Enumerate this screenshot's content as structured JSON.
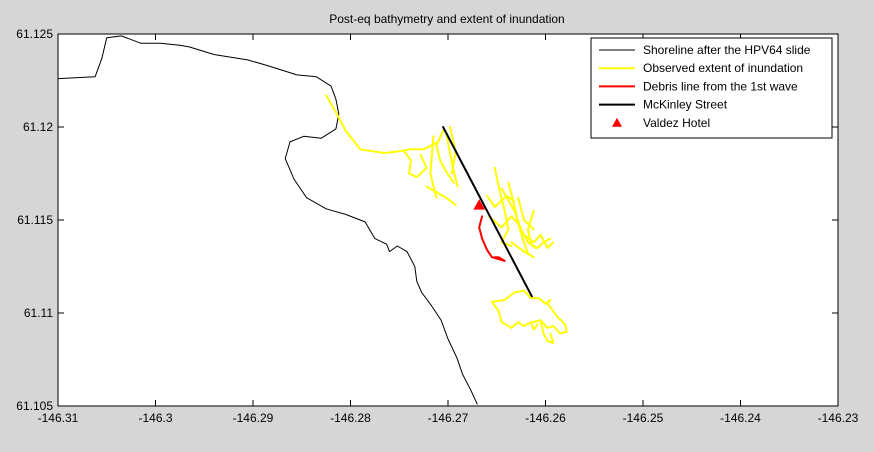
{
  "chart_data": {
    "type": "line",
    "title": "Post-eq bathymetry and extent of inundation",
    "xlabel": "",
    "ylabel": "",
    "xlim": [
      -146.31,
      -146.23
    ],
    "ylim": [
      61.105,
      61.125
    ],
    "xticks": [
      -146.31,
      -146.3,
      -146.29,
      -146.28,
      -146.27,
      -146.26,
      -146.25,
      -146.24,
      -146.23
    ],
    "yticks": [
      61.105,
      61.11,
      61.115,
      61.12,
      61.125
    ],
    "xtick_labels": [
      "-146.31",
      "-146.3",
      "-146.29",
      "-146.28",
      "-146.27",
      "-146.26",
      "-146.25",
      "-146.24",
      "-146.23"
    ],
    "ytick_labels": [
      "61.105",
      "61.11",
      "61.115",
      "61.12",
      "61.125"
    ],
    "grid": false,
    "legend_position": "top-right",
    "series": [
      {
        "name": "Shoreline after the HPV64 slide",
        "color": "#000000",
        "style": "line",
        "width": 1,
        "segments": [
          [
            [
              -146.31,
              61.1226
            ],
            [
              -146.3062,
              61.1227
            ],
            [
              -146.3055,
              61.1237
            ],
            [
              -146.305,
              61.1248
            ],
            [
              -146.3035,
              61.1249
            ],
            [
              -146.3015,
              61.1245
            ],
            [
              -146.2995,
              61.1245
            ],
            [
              -146.2975,
              61.1244
            ],
            [
              -146.2965,
              61.1243
            ],
            [
              -146.294,
              61.1239
            ],
            [
              -146.2905,
              61.1236
            ],
            [
              -146.2885,
              61.1233
            ],
            [
              -146.2855,
              61.1228
            ],
            [
              -146.2835,
              61.1227
            ],
            [
              -146.282,
              61.1222
            ],
            [
              -146.2815,
              61.1215
            ],
            [
              -146.2812,
              61.1207
            ],
            [
              -146.2815,
              61.1199
            ],
            [
              -146.283,
              61.1194
            ],
            [
              -146.2848,
              61.1195
            ],
            [
              -146.2862,
              61.1192
            ],
            [
              -146.2867,
              61.1183
            ],
            [
              -146.2858,
              61.1172
            ],
            [
              -146.2845,
              61.1162
            ],
            [
              -146.2825,
              61.1156
            ],
            [
              -146.2805,
              61.1153
            ],
            [
              -146.2785,
              61.1149
            ],
            [
              -146.2775,
              61.114
            ],
            [
              -146.2763,
              61.1137
            ],
            [
              -146.276,
              61.1133
            ],
            [
              -146.2752,
              61.1136
            ],
            [
              -146.2742,
              61.1133
            ],
            [
              -146.2734,
              61.1125
            ],
            [
              -146.2732,
              61.1117
            ],
            [
              -146.2727,
              61.1111
            ],
            [
              -146.2717,
              61.1104
            ],
            [
              -146.2707,
              61.1096
            ],
            [
              -146.27,
              61.1086
            ],
            [
              -146.2691,
              61.1076
            ],
            [
              -146.2685,
              61.1067
            ],
            [
              -146.2677,
              61.1059
            ],
            [
              -146.267,
              61.1051
            ]
          ]
        ]
      },
      {
        "name": "Observed extent of inundation",
        "color": "#ffff00",
        "style": "line",
        "width": 2,
        "segments": [
          [
            [
              -146.2825,
              61.1217
            ],
            [
              -146.2815,
              61.1208
            ],
            [
              -146.2805,
              61.1198
            ],
            [
              -146.279,
              61.1188
            ],
            [
              -146.2778,
              61.1187
            ],
            [
              -146.2765,
              61.1186
            ],
            [
              -146.275,
              61.1187
            ],
            [
              -146.2738,
              61.1188
            ],
            [
              -146.2725,
              61.1188
            ],
            [
              -146.271,
              61.1192
            ],
            [
              -146.2705,
              61.1198
            ],
            [
              -146.2712,
              61.119
            ],
            [
              -146.2708,
              61.1182
            ],
            [
              -146.2702,
              61.1176
            ],
            [
              -146.2694,
              61.117
            ]
          ],
          [
            [
              -146.2745,
              61.1187
            ],
            [
              -146.2738,
              61.1182
            ],
            [
              -146.274,
              61.1175
            ],
            [
              -146.2732,
              61.1173
            ],
            [
              -146.2722,
              61.1178
            ],
            [
              -146.2728,
              61.1185
            ]
          ],
          [
            [
              -146.2715,
              61.1195
            ],
            [
              -146.2718,
              61.1175
            ],
            [
              -146.2712,
              61.1162
            ]
          ],
          [
            [
              -146.2702,
              61.1197
            ],
            [
              -146.2695,
              61.1178
            ],
            [
              -146.269,
              61.1168
            ]
          ],
          [
            [
              -146.2722,
              61.1168
            ],
            [
              -146.2702,
              61.1162
            ],
            [
              -146.2692,
              61.1158
            ]
          ],
          [
            [
              -146.2698,
              61.12
            ],
            [
              -146.2692,
              61.1187
            ],
            [
              -146.2696,
              61.1175
            ]
          ],
          [
            [
              -146.2652,
              61.1178
            ],
            [
              -146.2648,
              61.1168
            ],
            [
              -146.2642,
              61.1155
            ],
            [
              -146.2638,
              61.1145
            ],
            [
              -146.2645,
              61.1138
            ],
            [
              -146.2635,
              61.1136
            ]
          ],
          [
            [
              -146.266,
              61.1163
            ],
            [
              -146.2652,
              61.1157
            ],
            [
              -146.264,
              61.1163
            ],
            [
              -146.2632,
              61.116
            ]
          ],
          [
            [
              -146.2658,
              61.1152
            ],
            [
              -146.2645,
              61.1146
            ],
            [
              -146.2635,
              61.1152
            ],
            [
              -146.2628,
              61.1148
            ]
          ],
          [
            [
              -146.2645,
              61.1167
            ],
            [
              -146.2632,
              61.1155
            ],
            [
              -146.2625,
              61.1145
            ],
            [
              -146.2618,
              61.1138
            ],
            [
              -146.261,
              61.1135
            ]
          ],
          [
            [
              -146.2638,
              61.117
            ],
            [
              -146.2633,
              61.116
            ],
            [
              -146.2628,
              61.1148
            ],
            [
              -146.2622,
              61.1138
            ],
            [
              -146.2618,
              61.1132
            ]
          ],
          [
            [
              -146.2628,
              61.1162
            ],
            [
              -146.2622,
              61.115
            ],
            [
              -146.2612,
              61.1145
            ]
          ],
          [
            [
              -146.2622,
              61.1142
            ],
            [
              -146.2612,
              61.1138
            ],
            [
              -146.2605,
              61.1142
            ]
          ],
          [
            [
              -146.2635,
              61.1138
            ],
            [
              -146.2622,
              61.1133
            ],
            [
              -146.2612,
              61.113
            ]
          ],
          [
            [
              -146.2612,
              61.1155
            ],
            [
              -146.2618,
              61.1145
            ],
            [
              -146.2615,
              61.1137
            ],
            [
              -146.2608,
              61.1135
            ],
            [
              -146.2602,
              61.1138
            ],
            [
              -146.2595,
              61.114
            ]
          ],
          [
            [
              -146.2605,
              61.1142
            ],
            [
              -146.2598,
              61.1135
            ],
            [
              -146.2592,
              61.1138
            ]
          ],
          [
            [
              -146.2655,
              61.1106
            ],
            [
              -146.2648,
              61.1101
            ],
            [
              -146.2645,
              61.1095
            ],
            [
              -146.2635,
              61.1092
            ],
            [
              -146.2628,
              61.1095
            ],
            [
              -146.2622,
              61.1093
            ],
            [
              -146.2615,
              61.1095
            ],
            [
              -146.2605,
              61.1096
            ],
            [
              -146.2598,
              61.1092
            ],
            [
              -146.2592,
              61.1093
            ],
            [
              -146.2585,
              61.1089
            ],
            [
              -146.2578,
              61.109
            ],
            [
              -146.258,
              61.1094
            ],
            [
              -146.2588,
              61.1098
            ],
            [
              -146.2595,
              61.1103
            ],
            [
              -146.2598,
              61.1105
            ],
            [
              -146.2595,
              61.1107
            ],
            [
              -146.26,
              61.1105
            ],
            [
              -146.2607,
              61.1108
            ],
            [
              -146.2615,
              61.1108
            ],
            [
              -146.2622,
              61.1112
            ],
            [
              -146.2632,
              61.1111
            ],
            [
              -146.2642,
              61.1107
            ],
            [
              -146.2655,
              61.1106
            ]
          ],
          [
            [
              -146.2605,
              61.1096
            ],
            [
              -146.2602,
              61.1089
            ],
            [
              -146.2598,
              61.1085
            ],
            [
              -146.2592,
              61.1084
            ],
            [
              -146.2595,
              61.1089
            ]
          ],
          [
            [
              -146.2615,
              61.1095
            ],
            [
              -146.2612,
              61.1091
            ],
            [
              -146.2608,
              61.1094
            ]
          ]
        ]
      },
      {
        "name": "Debris line from the 1st wave",
        "color": "#ff0000",
        "style": "line",
        "width": 2,
        "segments": [
          [
            [
              -146.2665,
              61.1152
            ],
            [
              -146.2668,
              61.1146
            ],
            [
              -146.2665,
              61.114
            ],
            [
              -146.266,
              61.1134
            ],
            [
              -146.2655,
              61.113
            ],
            [
              -146.2648,
              61.1129
            ],
            [
              -146.2642,
              61.1128
            ],
            [
              -146.2648,
              61.113
            ],
            [
              -146.2652,
              61.113
            ]
          ]
        ]
      },
      {
        "name": "McKinley Street",
        "color": "#000000",
        "style": "line",
        "width": 2,
        "segments": [
          [
            [
              -146.2705,
              61.12
            ],
            [
              -146.2614,
              61.1109
            ]
          ]
        ]
      },
      {
        "name": "Valdez Hotel",
        "color": "#ff0000",
        "style": "marker",
        "marker": "triangle",
        "points": [
          [
            -146.2668,
            61.1158
          ]
        ]
      }
    ]
  }
}
